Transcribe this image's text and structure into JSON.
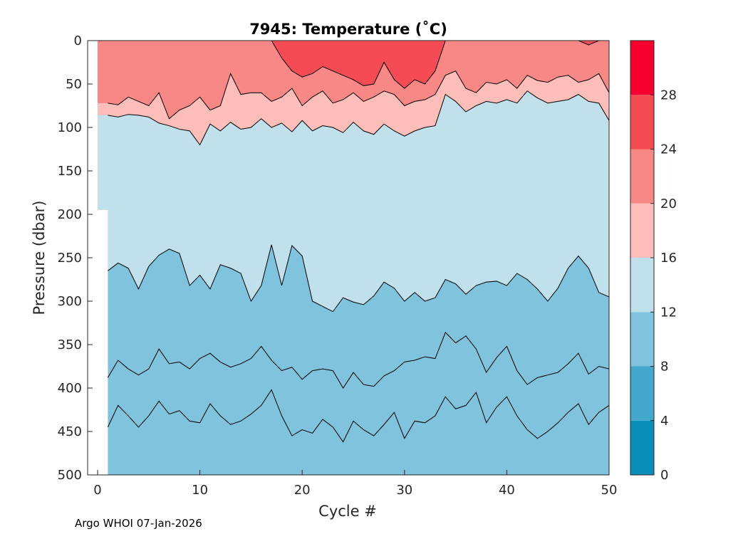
{
  "chart_data": {
    "type": "contour",
    "title": "7945:  Temperature (˚C)",
    "xlabel": "Cycle #",
    "ylabel": "Pressure (dbar)",
    "xlim": [
      0,
      50
    ],
    "ylim": [
      0,
      500
    ],
    "y_direction": "reversed",
    "x_ticks": [
      0,
      10,
      20,
      30,
      40,
      50
    ],
    "y_ticks": [
      0,
      50,
      100,
      150,
      200,
      250,
      300,
      350,
      400,
      450,
      500
    ],
    "colorbar": {
      "ticks": [
        0,
        4,
        8,
        12,
        16,
        20,
        24,
        28
      ],
      "range": [
        0,
        32
      ],
      "bands": [
        {
          "min": 0,
          "max": 4,
          "color": "#0a8fb9"
        },
        {
          "min": 4,
          "max": 8,
          "color": "#44a8cc"
        },
        {
          "min": 8,
          "max": 12,
          "color": "#7fc3dc"
        },
        {
          "min": 12,
          "max": 16,
          "color": "#c0e0ec"
        },
        {
          "min": 16,
          "max": 20,
          "color": "#fdbdb9"
        },
        {
          "min": 20,
          "max": 24,
          "color": "#f88886"
        },
        {
          "min": 24,
          "max": 28,
          "color": "#f44b55"
        },
        {
          "min": 28,
          "max": 32,
          "color": "#f7002f"
        }
      ]
    },
    "no_data_region": {
      "cycle_start": 0,
      "cycle_end": 1,
      "pressure_from": 195
    },
    "isotherms": [
      {
        "level": 24,
        "cycles": [
          1,
          2,
          3,
          4,
          5,
          6,
          7,
          8,
          9,
          10,
          11,
          12,
          13,
          14,
          15,
          16,
          17,
          18,
          19,
          20,
          21,
          22,
          23,
          24,
          25,
          26,
          27,
          28,
          29,
          30,
          31,
          32,
          33,
          34,
          35,
          36,
          37,
          38,
          39,
          40,
          41,
          42,
          43,
          44,
          45,
          46,
          47,
          48,
          49,
          50
        ],
        "pressure": [
          0,
          0,
          0,
          0,
          0,
          0,
          0,
          0,
          0,
          0,
          0,
          0,
          0,
          0,
          0,
          0,
          0,
          20,
          35,
          42,
          38,
          30,
          35,
          40,
          45,
          52,
          50,
          25,
          45,
          55,
          45,
          50,
          35,
          0,
          0,
          0,
          0,
          0,
          0,
          0,
          0,
          0,
          0,
          0,
          0,
          0,
          0,
          5,
          0,
          0
        ]
      },
      {
        "level": 20,
        "cycles": [
          1,
          2,
          3,
          4,
          5,
          6,
          7,
          8,
          9,
          10,
          11,
          12,
          13,
          14,
          15,
          16,
          17,
          18,
          19,
          20,
          21,
          22,
          23,
          24,
          25,
          26,
          27,
          28,
          29,
          30,
          31,
          32,
          33,
          34,
          35,
          36,
          37,
          38,
          39,
          40,
          41,
          42,
          43,
          44,
          45,
          46,
          47,
          48,
          49,
          50
        ],
        "pressure": [
          72,
          74,
          65,
          70,
          75,
          60,
          90,
          80,
          75,
          65,
          80,
          75,
          38,
          62,
          60,
          60,
          70,
          65,
          55,
          75,
          65,
          58,
          72,
          68,
          60,
          70,
          65,
          58,
          62,
          75,
          70,
          68,
          62,
          40,
          35,
          55,
          60,
          48,
          50,
          45,
          55,
          40,
          46,
          48,
          42,
          40,
          48,
          45,
          38,
          60
        ]
      },
      {
        "level": 16,
        "cycles": [
          1,
          2,
          3,
          4,
          5,
          6,
          7,
          8,
          9,
          10,
          11,
          12,
          13,
          14,
          15,
          16,
          17,
          18,
          19,
          20,
          21,
          22,
          23,
          24,
          25,
          26,
          27,
          28,
          29,
          30,
          31,
          32,
          33,
          34,
          35,
          36,
          37,
          38,
          39,
          40,
          41,
          42,
          43,
          44,
          45,
          46,
          47,
          48,
          49,
          50
        ],
        "pressure": [
          86,
          88,
          85,
          86,
          88,
          95,
          98,
          102,
          104,
          120,
          96,
          104,
          94,
          102,
          100,
          90,
          100,
          95,
          105,
          92,
          104,
          98,
          100,
          106,
          94,
          104,
          108,
          96,
          104,
          110,
          104,
          100,
          98,
          62,
          70,
          82,
          75,
          70,
          72,
          68,
          72,
          58,
          66,
          72,
          70,
          68,
          62,
          70,
          72,
          92
        ]
      },
      {
        "level": 12,
        "cycles": [
          1,
          2,
          3,
          4,
          5,
          6,
          7,
          8,
          9,
          10,
          11,
          12,
          13,
          14,
          15,
          16,
          17,
          18,
          19,
          20,
          21,
          22,
          23,
          24,
          25,
          26,
          27,
          28,
          29,
          30,
          31,
          32,
          33,
          34,
          35,
          36,
          37,
          38,
          39,
          40,
          41,
          42,
          43,
          44,
          45,
          46,
          47,
          48,
          49,
          50
        ],
        "pressure": [
          265,
          256,
          262,
          286,
          260,
          247,
          240,
          245,
          282,
          270,
          286,
          258,
          262,
          268,
          300,
          282,
          235,
          282,
          236,
          248,
          300,
          306,
          312,
          296,
          301,
          304,
          294,
          278,
          285,
          300,
          290,
          300,
          296,
          275,
          280,
          292,
          282,
          278,
          277,
          282,
          268,
          275,
          286,
          300,
          285,
          262,
          248,
          262,
          290,
          295
        ]
      },
      {
        "level": 10,
        "cycles": [
          1,
          2,
          3,
          4,
          5,
          6,
          7,
          8,
          9,
          10,
          11,
          12,
          13,
          14,
          15,
          16,
          17,
          18,
          19,
          20,
          21,
          22,
          23,
          24,
          25,
          26,
          27,
          28,
          29,
          30,
          31,
          32,
          33,
          34,
          35,
          36,
          37,
          38,
          39,
          40,
          41,
          42,
          43,
          44,
          45,
          46,
          47,
          48,
          49,
          50
        ],
        "pressure": [
          388,
          368,
          378,
          385,
          378,
          355,
          372,
          370,
          378,
          366,
          360,
          370,
          376,
          372,
          366,
          352,
          368,
          380,
          376,
          390,
          380,
          378,
          380,
          400,
          382,
          396,
          398,
          386,
          380,
          370,
          368,
          364,
          366,
          336,
          348,
          340,
          355,
          382,
          365,
          352,
          380,
          396,
          388,
          385,
          382,
          372,
          360,
          384,
          375,
          378
        ]
      },
      {
        "level": 9,
        "cycles": [
          1,
          2,
          3,
          4,
          5,
          6,
          7,
          8,
          9,
          10,
          11,
          12,
          13,
          14,
          15,
          16,
          17,
          18,
          19,
          20,
          21,
          22,
          23,
          24,
          25,
          26,
          27,
          28,
          29,
          30,
          31,
          32,
          33,
          34,
          35,
          36,
          37,
          38,
          39,
          40,
          41,
          42,
          43,
          44,
          45,
          46,
          47,
          48,
          49,
          50
        ],
        "pressure": [
          445,
          420,
          432,
          445,
          432,
          415,
          430,
          426,
          438,
          440,
          418,
          432,
          442,
          438,
          430,
          420,
          402,
          432,
          455,
          448,
          452,
          436,
          445,
          462,
          438,
          448,
          455,
          442,
          428,
          458,
          438,
          440,
          432,
          410,
          424,
          420,
          405,
          440,
          422,
          410,
          432,
          448,
          458,
          450,
          440,
          428,
          418,
          442,
          428,
          420
        ]
      }
    ],
    "credit": "Argo WHOI 07-Jan-2026"
  }
}
